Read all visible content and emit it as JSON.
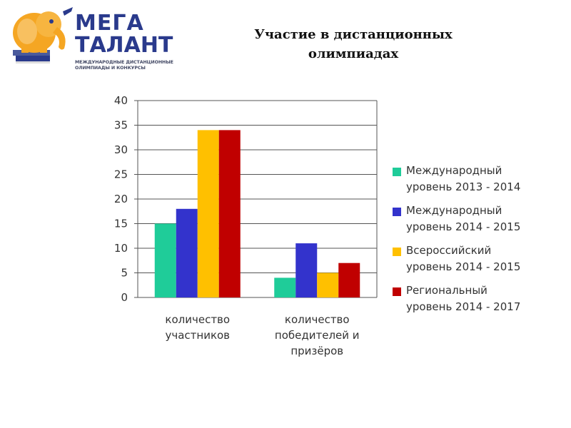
{
  "logo": {
    "line1": "МЕГА",
    "line2": "ТАЛАНТ",
    "sub1": "МЕЖДУНАРОДНЫЕ ДИСТАНЦИОННЫЕ",
    "sub2": "ОЛИМПИАДЫ И КОНКУРСЫ"
  },
  "title": {
    "line1": "Участие в дистанционных",
    "line2": "олимпиадах"
  },
  "colors": {
    "logo_orange": "#f5a623",
    "logo_blue": "#2a3a8c",
    "series": [
      "#1fcc99",
      "#3333cc",
      "#ffc000",
      "#c00000"
    ]
  },
  "chart_data": {
    "type": "bar",
    "categories": [
      "количество\nучастников",
      "количество\nпобедителей и\nпризёров"
    ],
    "series": [
      {
        "name": "Международный\nуровень 2013 - 2014",
        "values": [
          15,
          4
        ],
        "color": "#1fcc99"
      },
      {
        "name": "Международный\nуровень 2014 - 2015",
        "values": [
          18,
          11
        ],
        "color": "#3333cc"
      },
      {
        "name": "Всероссийский\nуровень 2014 - 2015",
        "values": [
          34,
          5
        ],
        "color": "#ffc000"
      },
      {
        "name": "Региональный\nуровень 2014 - 2017",
        "values": [
          34,
          7
        ],
        "color": "#c00000"
      }
    ],
    "ylim": [
      0,
      40
    ],
    "yticks": [
      "0",
      "5",
      "10",
      "15",
      "20",
      "25",
      "30",
      "35",
      "40"
    ],
    "grid": true,
    "legend": "right",
    "xlabel": "",
    "ylabel": ""
  }
}
